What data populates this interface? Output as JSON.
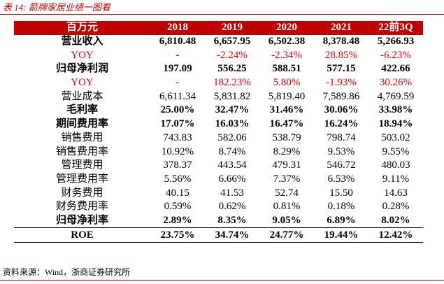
{
  "header": {
    "title": "表 14: 箭牌家居业绩一图看"
  },
  "table": {
    "columns": [
      "百万元",
      "2018",
      "2019",
      "2020",
      "2021",
      "22前3Q"
    ],
    "rows": [
      [
        "营业收入",
        "6,810.48",
        "6,657.95",
        "6,502.38",
        "8,378.48",
        "5,266.93"
      ],
      [
        "YOY",
        "-",
        "-2.24%",
        "-2.34%",
        "28.85%",
        "-6.23%"
      ],
      [
        "归母净利润",
        "197.09",
        "556.25",
        "588.51",
        "577.15",
        "422.66"
      ],
      [
        "YOY",
        "-",
        "182.23%",
        "5.80%",
        "-1.93%",
        "30.26%"
      ],
      [
        "营业成本",
        "6,611.34",
        "5,831.82",
        "5,819.40",
        "7,589.86",
        "4,769.59"
      ],
      [
        "毛利率",
        "25.00%",
        "32.47%",
        "31.46%",
        "30.06%",
        "33.98%"
      ],
      [
        "期间费用率",
        "17.07%",
        "16.03%",
        "16.47%",
        "16.24%",
        "18.94%"
      ],
      [
        "销售费用",
        "743.83",
        "582.06",
        "538.79",
        "798.74",
        "503.02"
      ],
      [
        "销售费用率",
        "10.92%",
        "8.74%",
        "8.29%",
        "9.53%",
        "9.55%"
      ],
      [
        "管理费用",
        "378.37",
        "443.54",
        "479.31",
        "546.72",
        "480.03"
      ],
      [
        "管理费用率",
        "5.56%",
        "6.66%",
        "7.37%",
        "6.53%",
        "9.11%"
      ],
      [
        "财务费用",
        "40.15",
        "41.53",
        "52.74",
        "15.50",
        "14.63"
      ],
      [
        "财务费用率",
        "0.59%",
        "0.62%",
        "0.81%",
        "0.18%",
        "0.28%"
      ],
      [
        "归母净利率",
        "2.89%",
        "8.35%",
        "9.05%",
        "6.89%",
        "8.02%"
      ],
      [
        "ROE",
        "23.75%",
        "34.74%",
        "24.77%",
        "19.44%",
        "12.42%"
      ]
    ]
  },
  "footer": {
    "source": "资料来源：Wind，浙商证券研究所"
  }
}
